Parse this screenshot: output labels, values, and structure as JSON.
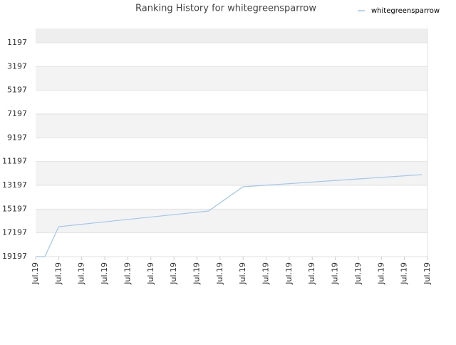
{
  "chart_data": {
    "type": "line",
    "title": "Ranking History for whitegreensparrow",
    "x": [
      0,
      0.4,
      1.0,
      7.5,
      9.0,
      16.75
    ],
    "series": [
      {
        "name": "whitegreensparrow",
        "color": "#9fc7ef",
        "values": [
          19197,
          19197,
          16677,
          15357,
          13317,
          12297
        ]
      }
    ],
    "xlim": [
      0,
      17
    ],
    "xticks": [
      {
        "value": 0,
        "label": "Jul.19"
      },
      {
        "value": 1,
        "label": "Jul.19"
      },
      {
        "value": 2,
        "label": "Jul.19"
      },
      {
        "value": 3,
        "label": "Jul.19"
      },
      {
        "value": 4,
        "label": "Jul.19"
      },
      {
        "value": 5,
        "label": "Jul.19"
      },
      {
        "value": 6,
        "label": "Jul.19"
      },
      {
        "value": 7,
        "label": "Jul.19"
      },
      {
        "value": 8,
        "label": "Jul.19"
      },
      {
        "value": 9,
        "label": "Jul.19"
      },
      {
        "value": 10,
        "label": "Jul.19"
      },
      {
        "value": 11,
        "label": "Jul.19"
      },
      {
        "value": 12,
        "label": "Jul.19"
      },
      {
        "value": 13,
        "label": "Jul.19"
      },
      {
        "value": 14,
        "label": "Jul.19"
      },
      {
        "value": 15,
        "label": "Jul.19"
      },
      {
        "value": 16,
        "label": "Jul.19"
      },
      {
        "value": 17,
        "label": "Jul.19"
      }
    ],
    "ylim": [
      19197,
      -3
    ],
    "yticks": [
      1197,
      3197,
      5197,
      7197,
      9197,
      11197,
      13197,
      15197,
      17197,
      19197
    ],
    "grid": true,
    "legend": "top-right"
  }
}
